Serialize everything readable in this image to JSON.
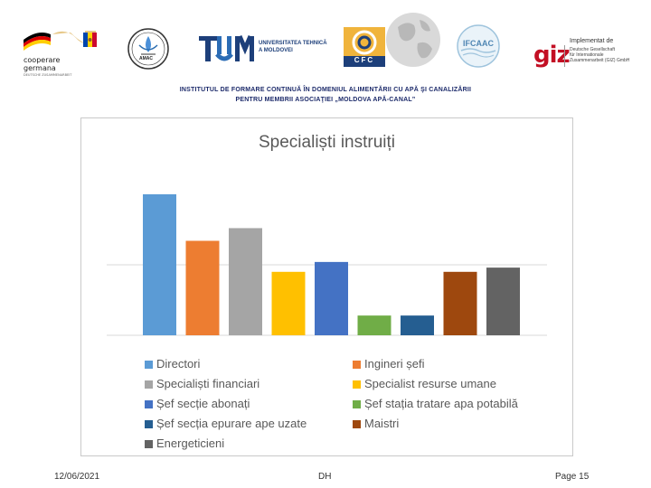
{
  "header": {
    "cooperare_label": "cooperare\ngermana",
    "cooperare_sub": "DEUTSCHE ZUSAMMENARBEIT",
    "tum_name": "UNIVERSITATEA TEHNICĂ\nA MOLDOVEI",
    "amac_label": "AMAC",
    "cfc_label": "CFC",
    "ifcaac_label": "IFCAAC",
    "giz_implemented": "Implementat de",
    "giz_label": "giz",
    "giz_desc": "Deutsche Gesellschaft\nfür Internationale\nZusammenarbeit (GIZ) GmbH"
  },
  "institute": {
    "line1": "INSTITUTUL DE FORMARE CONTINUĂ ÎN DOMENIUL ALIMENTĂRII CU APĂ ŞI CANALIZĂRII",
    "line2": "PENTRU MEMBRII ASOCIAŢIEI „MOLDOVA APĂ-CANAL”"
  },
  "chart_data": {
    "type": "bar",
    "title": "Specialiști instruiți",
    "gridlines": [
      0.5
    ],
    "grid": true,
    "legend_position": "bottom",
    "series": [
      {
        "name": "Directori",
        "value": 1.0,
        "color": "#5B9BD5"
      },
      {
        "name": "Ingineri șefi",
        "value": 0.67,
        "color": "#ED7D31"
      },
      {
        "name": "Specialiști financiari",
        "value": 0.76,
        "color": "#A5A5A5"
      },
      {
        "name": "Specialist resurse umane",
        "value": 0.45,
        "color": "#FFC000"
      },
      {
        "name": "Șef secție abonați",
        "value": 0.52,
        "color": "#4472C4"
      },
      {
        "name": "Șef stația tratare apa potabilă",
        "value": 0.14,
        "color": "#70AD47"
      },
      {
        "name": "Șef secția epurare ape uzate",
        "value": 0.14,
        "color": "#255E91"
      },
      {
        "name": "Maistri",
        "value": 0.45,
        "color": "#9E480E"
      },
      {
        "name": "Energeticieni",
        "value": 0.48,
        "color": "#636363"
      }
    ],
    "ylim": [
      0,
      1
    ]
  },
  "footer": {
    "date": "12/06/2021",
    "center": "DH",
    "page": "Page 15"
  }
}
